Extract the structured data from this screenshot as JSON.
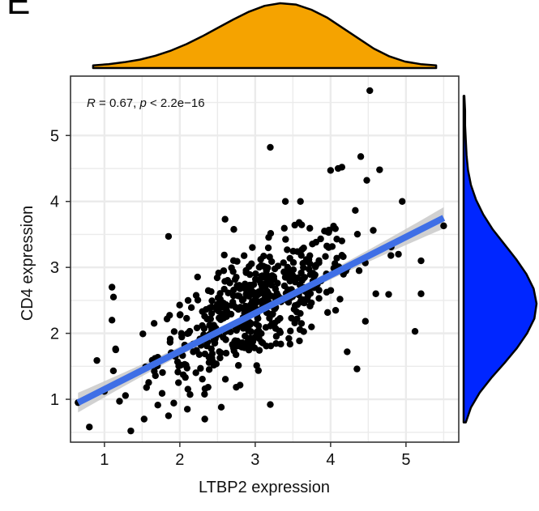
{
  "panel_label": "E",
  "chart_data": {
    "type": "scatter",
    "xlabel": "LTBP2 expression",
    "ylabel": "CD4 expression",
    "xlim": [
      0.55,
      5.7
    ],
    "ylim": [
      0.35,
      5.9
    ],
    "x_ticks": [
      1,
      2,
      3,
      4,
      5
    ],
    "y_ticks": [
      1,
      2,
      3,
      4,
      5
    ],
    "grid": true,
    "annotation": {
      "r_symbol": "R",
      "r_text": " = 0.67, ",
      "p_symbol": "p",
      "p_text": " < 2.2e−16"
    },
    "regression": {
      "x": [
        0.65,
        5.5
      ],
      "y": [
        0.95,
        3.75
      ],
      "color": "#3f6fe6",
      "ci_color": "#c9c9c9"
    },
    "point_color": "#000000",
    "outlier_points": [
      [
        0.8,
        0.58
      ],
      [
        0.65,
        0.95
      ],
      [
        1.35,
        0.52
      ],
      [
        1.1,
        2.7
      ],
      [
        1.12,
        2.55
      ],
      [
        1.85,
        3.47
      ],
      [
        2.6,
        3.73
      ],
      [
        3.2,
        4.82
      ],
      [
        4.52,
        5.68
      ],
      [
        4.4,
        4.68
      ],
      [
        4.0,
        4.47
      ],
      [
        4.1,
        4.5
      ],
      [
        4.15,
        4.52
      ],
      [
        4.65,
        4.48
      ],
      [
        4.95,
        4.0
      ],
      [
        4.48,
        4.32
      ],
      [
        5.5,
        3.63
      ],
      [
        5.2,
        3.1
      ],
      [
        5.2,
        2.6
      ],
      [
        5.12,
        2.03
      ],
      [
        4.6,
        2.6
      ],
      [
        4.22,
        1.72
      ],
      [
        4.35,
        1.46
      ],
      [
        3.2,
        0.92
      ],
      [
        2.55,
        0.88
      ],
      [
        2.1,
        0.85
      ],
      [
        1.85,
        0.75
      ],
      [
        1.2,
        0.97
      ],
      [
        1.0,
        1.12
      ],
      [
        1.15,
        1.75
      ],
      [
        1.1,
        2.2
      ],
      [
        3.4,
        4.0
      ],
      [
        3.6,
        4.0
      ],
      [
        4.8,
        3.18
      ],
      [
        4.9,
        3.2
      ]
    ],
    "cluster_n": 520,
    "cluster_center": [
      3.0,
      2.4
    ],
    "cluster_sd": [
      0.65,
      0.55
    ],
    "cluster_corr": 0.67,
    "x_marginal": {
      "color": "#f5a300",
      "density": [
        0.04,
        0.06,
        0.09,
        0.13,
        0.19,
        0.27,
        0.37,
        0.49,
        0.62,
        0.75,
        0.87,
        0.96,
        1.0,
        0.98,
        0.9,
        0.78,
        0.62,
        0.46,
        0.3,
        0.18,
        0.1,
        0.06,
        0.04
      ]
    },
    "y_marginal": {
      "color": "#0026ff",
      "density": [
        0.03,
        0.1,
        0.22,
        0.38,
        0.56,
        0.73,
        0.87,
        0.97,
        1.0,
        0.96,
        0.86,
        0.72,
        0.56,
        0.4,
        0.27,
        0.17,
        0.1,
        0.06,
        0.04,
        0.03,
        0.02,
        0.02,
        0.01
      ]
    }
  }
}
